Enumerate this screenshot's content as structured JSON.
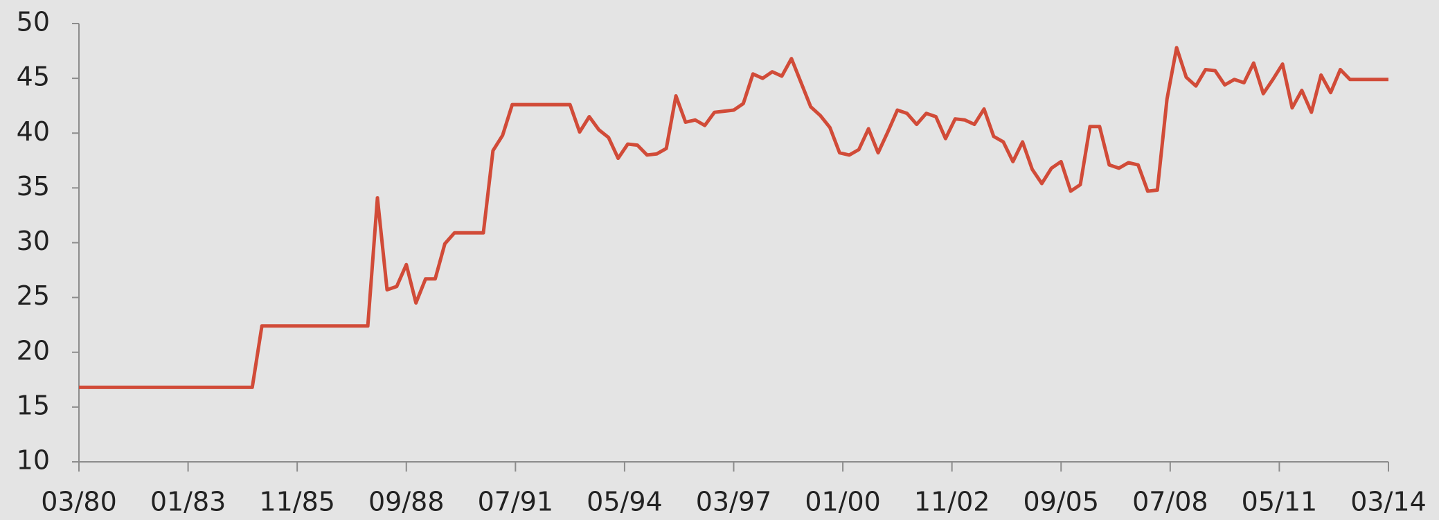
{
  "chart_data": {
    "type": "line",
    "x": [
      "03/80",
      "09/84",
      "12/84",
      "09/87",
      "12/87",
      "03/88",
      "06/88",
      "09/88",
      "12/88",
      "03/89",
      "06/89",
      "09/89",
      "12/89",
      "03/90",
      "06/90",
      "09/90",
      "12/90",
      "03/91",
      "06/91",
      "09/91",
      "12/91",
      "03/92",
      "06/92",
      "09/92",
      "12/92",
      "03/93",
      "06/93",
      "09/93",
      "12/93",
      "03/94",
      "06/94",
      "09/94",
      "12/94",
      "03/95",
      "06/95",
      "09/95",
      "12/95",
      "03/96",
      "06/96",
      "09/96",
      "12/96",
      "03/97",
      "06/97",
      "09/97",
      "12/97",
      "03/98",
      "06/98",
      "09/98",
      "12/98",
      "03/99",
      "06/99",
      "09/99",
      "12/99",
      "03/00",
      "06/00",
      "09/00",
      "12/00",
      "03/01",
      "06/01",
      "09/01",
      "12/01",
      "03/02",
      "06/02",
      "09/02",
      "12/02",
      "03/03",
      "06/03",
      "09/03",
      "12/03",
      "03/04",
      "06/04",
      "09/04",
      "12/04",
      "03/05",
      "06/05",
      "09/05",
      "12/05",
      "03/06",
      "06/06",
      "09/06",
      "12/06",
      "03/07",
      "06/07",
      "09/07",
      "12/07",
      "03/08",
      "06/08",
      "09/08",
      "12/08",
      "03/09",
      "06/09",
      "09/09",
      "12/09",
      "03/10",
      "06/10",
      "09/10",
      "12/10",
      "03/11",
      "06/11",
      "09/11",
      "12/11",
      "03/12",
      "06/12",
      "09/12",
      "12/12",
      "03/13",
      "06/13",
      "09/13",
      "12/13",
      "03/14"
    ],
    "series": [
      {
        "color": "#d14b38",
        "values": [
          16.8,
          16.8,
          22.4,
          22.4,
          34.1,
          25.7,
          26.0,
          28.0,
          24.5,
          26.7,
          26.7,
          29.9,
          30.9,
          30.9,
          30.9,
          30.9,
          38.4,
          39.8,
          42.6,
          42.6,
          42.6,
          42.6,
          42.6,
          42.6,
          42.6,
          40.1,
          41.5,
          40.3,
          39.6,
          37.7,
          39.0,
          38.9,
          38.0,
          38.1,
          38.6,
          43.4,
          41.0,
          41.2,
          40.7,
          41.9,
          42.0,
          42.1,
          42.7,
          45.4,
          45.0,
          45.6,
          45.2,
          46.8,
          44.6,
          42.4,
          41.6,
          40.5,
          38.2,
          38.0,
          38.5,
          40.4,
          38.2,
          40.1,
          42.1,
          41.8,
          40.8,
          41.8,
          41.5,
          39.5,
          41.3,
          41.2,
          40.8,
          42.2,
          39.7,
          39.2,
          37.4,
          39.2,
          36.7,
          35.4,
          36.8,
          37.4,
          34.7,
          35.3,
          40.6,
          40.6,
          37.1,
          36.8,
          37.3,
          37.1,
          34.7,
          34.8,
          43.1,
          47.8,
          45.1,
          44.3,
          45.8,
          45.7,
          44.4,
          44.9,
          44.6,
          46.4,
          43.6,
          44.9,
          46.3,
          42.3,
          43.9,
          41.9,
          45.3,
          43.7,
          45.8,
          44.9,
          44.9,
          44.9,
          44.9,
          44.9
        ]
      }
    ],
    "xlim": [
      "03/80",
      "03/14"
    ],
    "xticks": [
      "03/80",
      "01/83",
      "11/85",
      "09/88",
      "07/91",
      "05/94",
      "03/97",
      "01/00",
      "11/02",
      "09/05",
      "07/08",
      "05/11",
      "03/14"
    ],
    "ylim": [
      10,
      50
    ],
    "yticks": [
      10,
      15,
      20,
      25,
      30,
      35,
      40,
      45,
      50
    ]
  }
}
